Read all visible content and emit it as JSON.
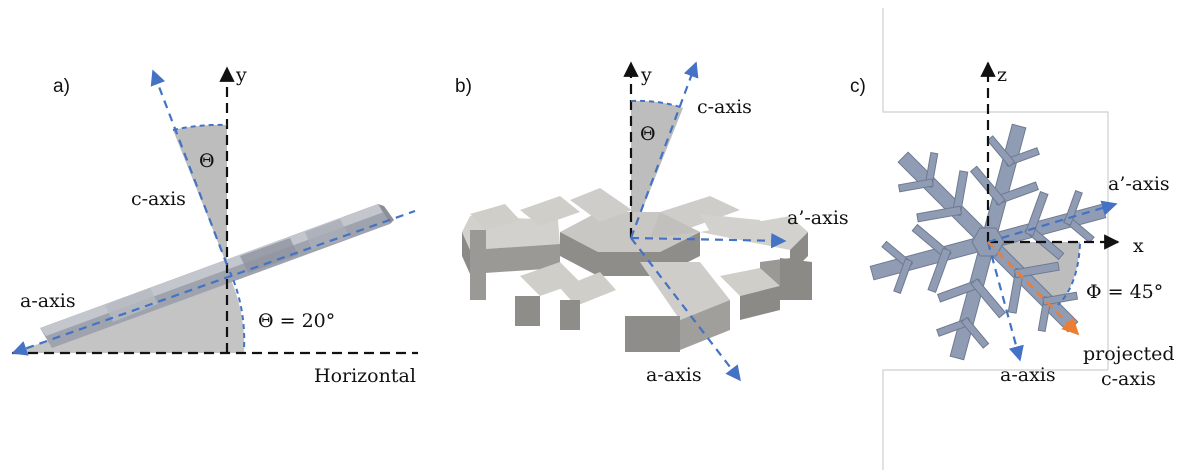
{
  "colors": {
    "dashed_black": "#111111",
    "dashed_blue": "#4472c4",
    "dashed_orange": "#ed7d31",
    "wedge_gray": "#bdbdbd",
    "crystal_side": "#9c9a96",
    "crystal_top": "#c9c7c3",
    "crystal_blue": "#8f9cb4"
  },
  "panel_a": {
    "label": "a)",
    "y_axis": "y",
    "theta_symbol": "Θ",
    "c_axis": "c-axis",
    "a_axis": "a-axis",
    "angle_value": "Θ = 20°",
    "horizontal": "Horizontal"
  },
  "panel_b": {
    "label": "b)",
    "y_axis": "y",
    "theta_symbol": "Θ",
    "c_axis": "c-axis",
    "a_prime_axis": "a’-axis",
    "a_axis": "a-axis"
  },
  "panel_c": {
    "label": "c)",
    "z_axis": "z",
    "x_axis": "x",
    "a_prime_axis": "a’-axis",
    "a_axis": "a-axis",
    "angle_value": "Φ = 45°",
    "projected_line1": "projected",
    "projected_line2": "c-axis"
  }
}
